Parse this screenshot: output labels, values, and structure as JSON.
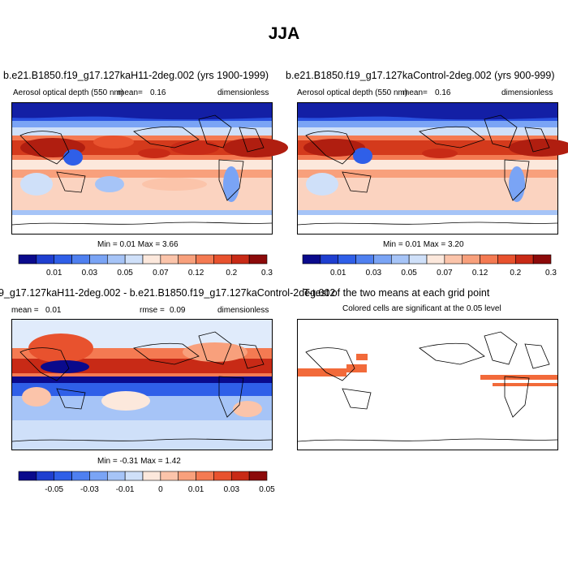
{
  "main_title": "JJA",
  "chart_data": [
    {
      "type": "heatmap",
      "title": "b.e21.B1850.f19_g17.127kaH11-2deg.002 (yrs 1900-1999)",
      "variable": "Aerosol optical depth (550 nm)",
      "mean_label": "mean=",
      "mean_value": "0.16",
      "units": "dimensionless",
      "stats_label": "Min =  0.01 Max =  3.66",
      "min": 0.01,
      "max": 3.66,
      "colorbar_ticks": [
        "0.01",
        "0.03",
        "0.05",
        "0.07",
        "0.12",
        "0.2",
        "0.3"
      ],
      "colorbar_colors": [
        "#0a0a8c",
        "#1f3fd0",
        "#2f5fe8",
        "#4f80f0",
        "#7aa4f5",
        "#a6c4f7",
        "#cfe0f9",
        "#fce8dc",
        "#fbc4aa",
        "#f8a07c",
        "#f47a52",
        "#e8522e",
        "#c82a16",
        "#8c0a0a"
      ]
    },
    {
      "type": "heatmap",
      "title": "b.e21.B1850.f19_g17.127kaControl-2deg.002 (yrs 900-999)",
      "variable": "Aerosol optical depth (550 nm)",
      "mean_label": "mean=",
      "mean_value": "0.16",
      "units": "dimensionless",
      "stats_label": "Min =  0.01 Max =  3.20",
      "min": 0.01,
      "max": 3.2,
      "colorbar_ticks": [
        "0.01",
        "0.03",
        "0.05",
        "0.07",
        "0.12",
        "0.2",
        "0.3"
      ],
      "colorbar_colors": [
        "#0a0a8c",
        "#1f3fd0",
        "#2f5fe8",
        "#4f80f0",
        "#7aa4f5",
        "#a6c4f7",
        "#cfe0f9",
        "#fce8dc",
        "#fbc4aa",
        "#f8a07c",
        "#f47a52",
        "#e8522e",
        "#c82a16",
        "#8c0a0a"
      ]
    },
    {
      "type": "heatmap",
      "title": "9_g17.127kaH11-2deg.002 - b.e21.B1850.f19_g17.127kaControl-2deg.002",
      "mean_label": "mean =",
      "mean_value": "0.01",
      "rmse_label": "rmse =",
      "rmse_value": "0.09",
      "units": "dimensionless",
      "stats_label": "Min = -0.31 Max =  1.42",
      "min": -0.31,
      "max": 1.42,
      "colorbar_ticks": [
        "-0.05",
        "-0.03",
        "-0.01",
        "0",
        "0.01",
        "0.03",
        "0.05"
      ],
      "colorbar_colors": [
        "#0a0a8c",
        "#1f3fd0",
        "#2f5fe8",
        "#4f80f0",
        "#7aa4f5",
        "#a6c4f7",
        "#cfe0f9",
        "#fce8dc",
        "#fbc4aa",
        "#f8a07c",
        "#f47a52",
        "#e8522e",
        "#c82a16",
        "#8c0a0a"
      ]
    },
    {
      "type": "heatmap",
      "title": "T-test of the two means at each grid point",
      "subtitle": "Colored cells are significant at the 0.05 level",
      "significance_color": "#f26a3a"
    }
  ],
  "colors": {
    "land_outline": "#000000",
    "background": "#ffffff"
  }
}
